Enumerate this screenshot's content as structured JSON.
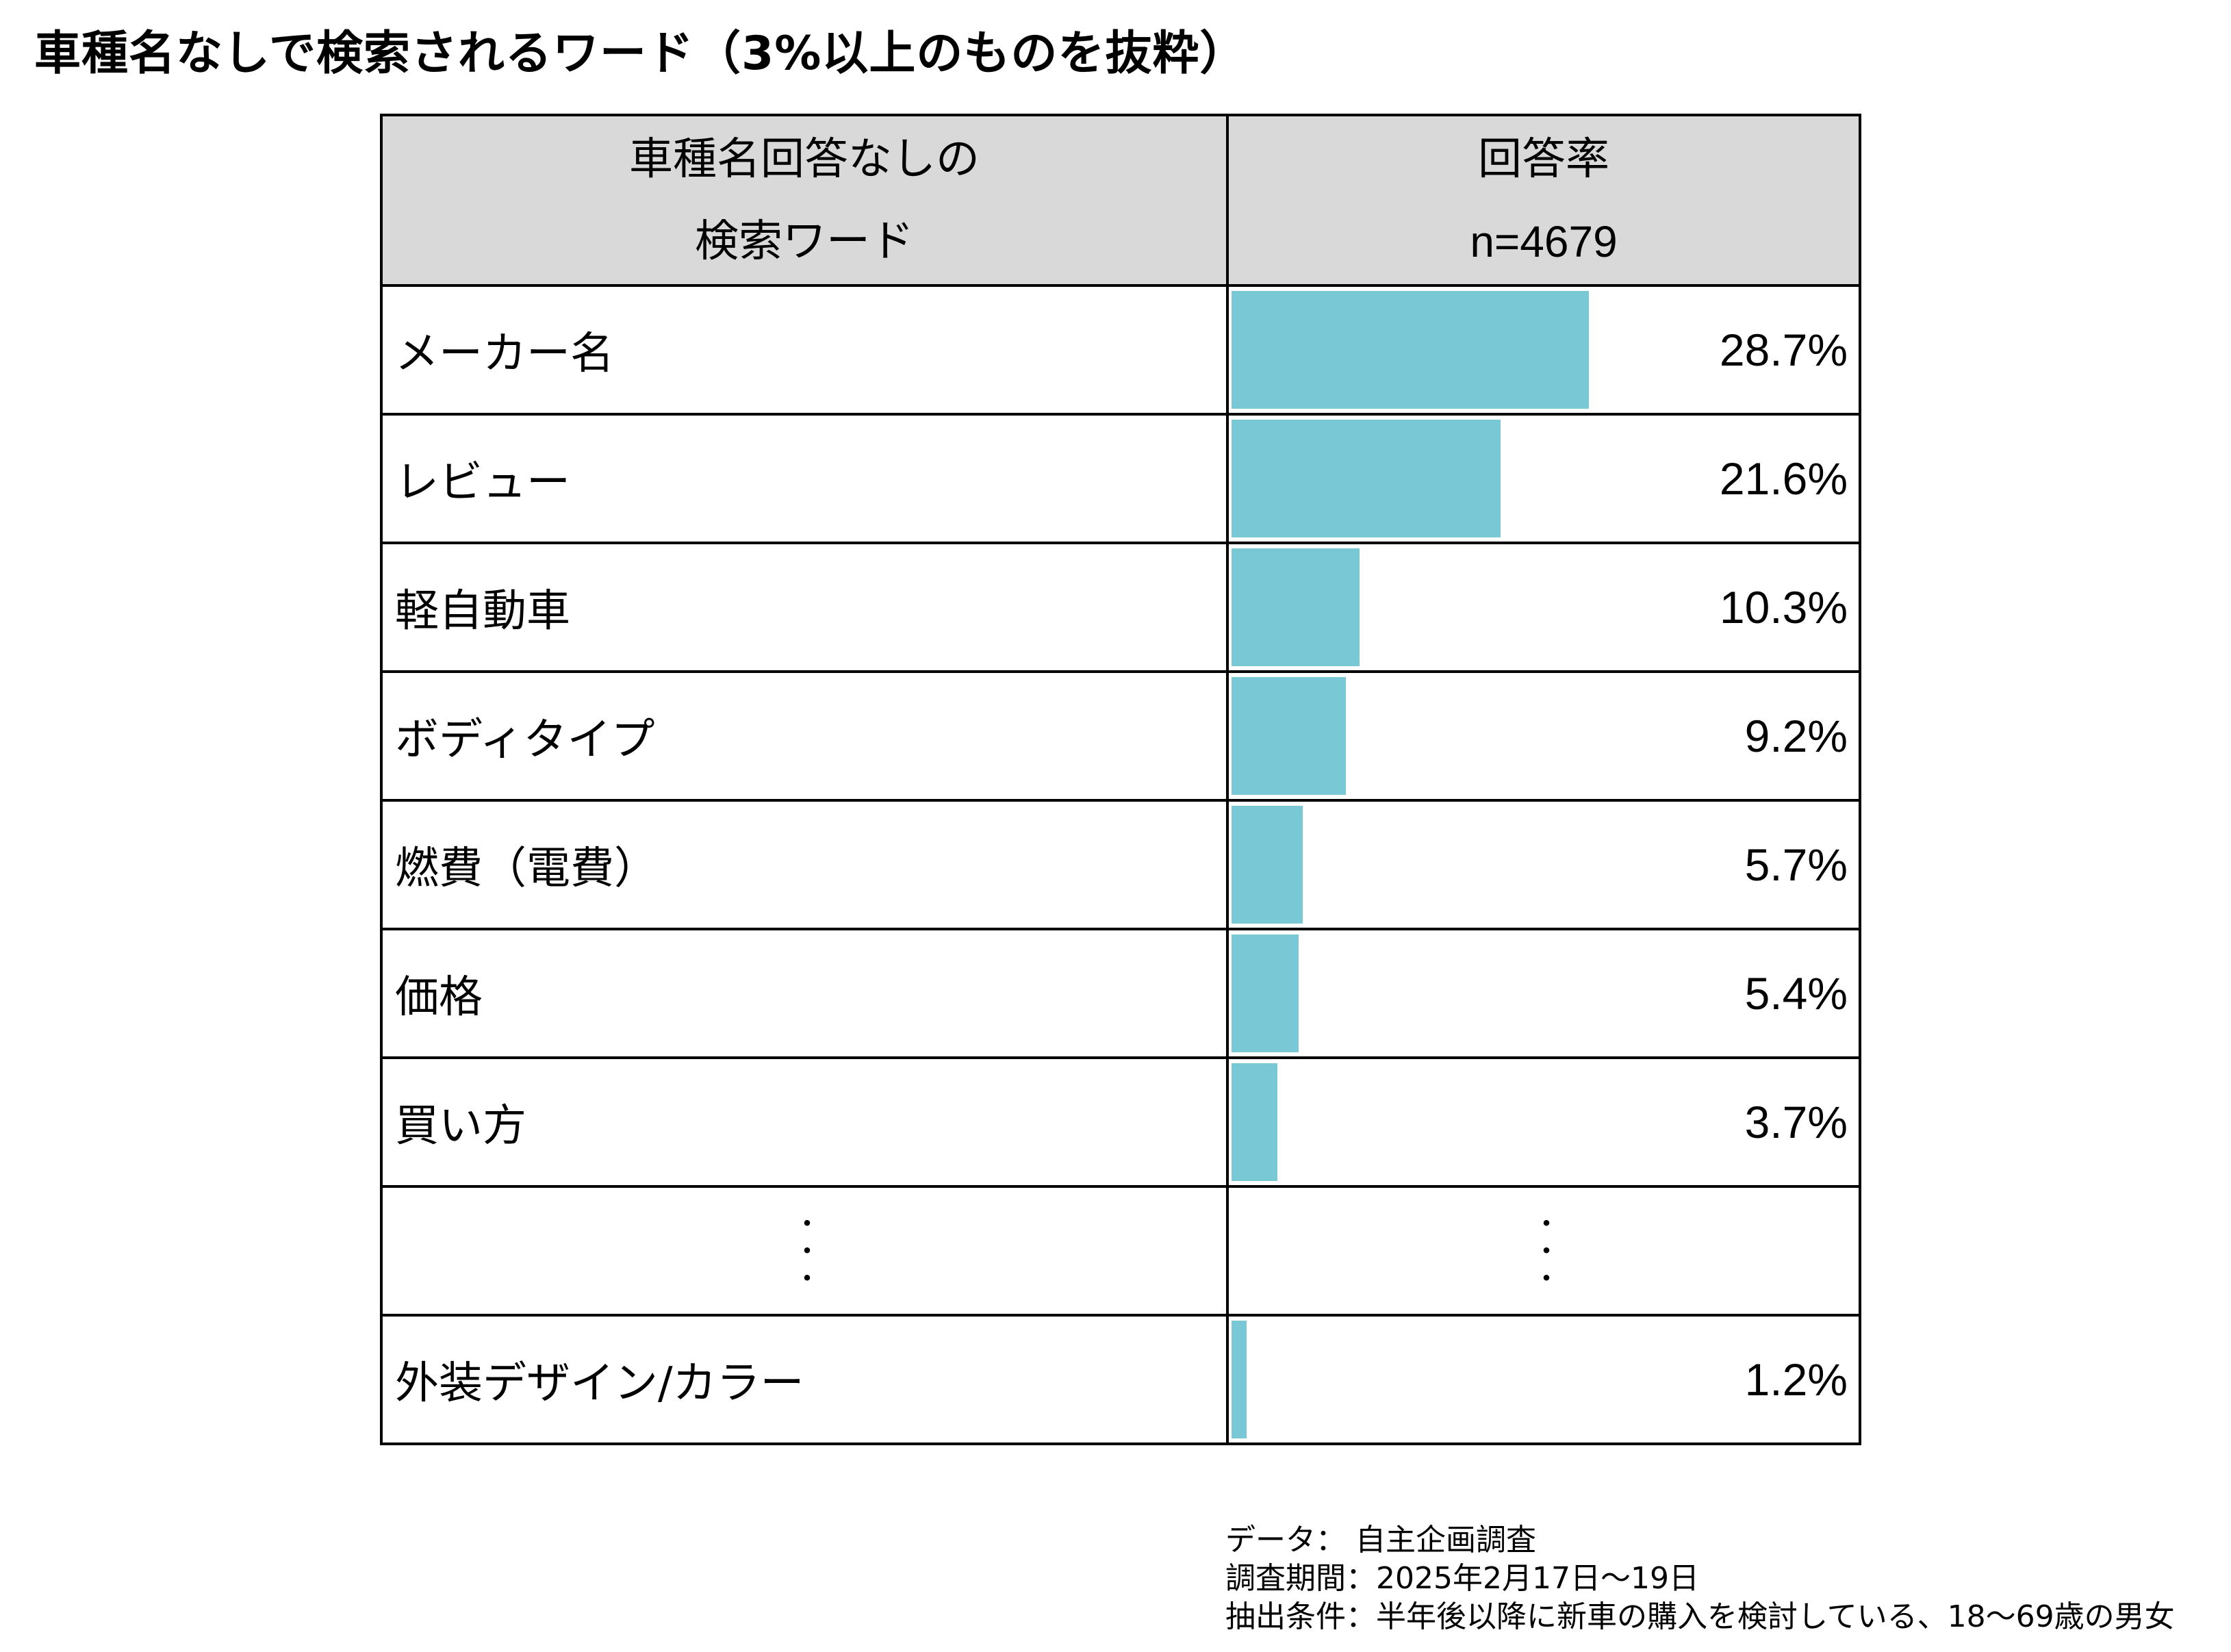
{
  "title": "車種名なしで検索されるワード（3%以上のものを抜粋）",
  "chart_data": {
    "type": "table",
    "title": "車種名なしで検索されるワード（3%以上のものを抜粋）",
    "header": {
      "col1_line1": "車種名回答なしの",
      "col1_line2": "検索ワード",
      "col2_line1": "回答率",
      "col2_line2": "n=4679"
    },
    "unit": "%",
    "bar_color": "#78c8d6",
    "rows": [
      {
        "label": "メーカー名",
        "value": 28.7,
        "display": "28.7%"
      },
      {
        "label": "レビュー",
        "value": 21.6,
        "display": "21.6%"
      },
      {
        "label": "軽自動車",
        "value": 10.3,
        "display": "10.3%"
      },
      {
        "label": "ボディタイプ",
        "value": 9.2,
        "display": "9.2%"
      },
      {
        "label": "燃費（電費）",
        "value": 5.7,
        "display": "5.7%"
      },
      {
        "label": "価格",
        "value": 5.4,
        "display": "5.4%"
      },
      {
        "label": "買い方",
        "value": 3.7,
        "display": "3.7%"
      }
    ],
    "ellipsis": "・・・",
    "last_row": {
      "label": "外装デザイン/カラー",
      "value": 1.2,
      "display": "1.2%"
    },
    "xlim": [
      0,
      50
    ]
  },
  "footer": {
    "line1": "データ：  自主企画調査",
    "line2": "調査期間：2025年2月17日～19日",
    "line3": "抽出条件：半年後以降に新車の購入を検討している、18～69歳の男女"
  }
}
